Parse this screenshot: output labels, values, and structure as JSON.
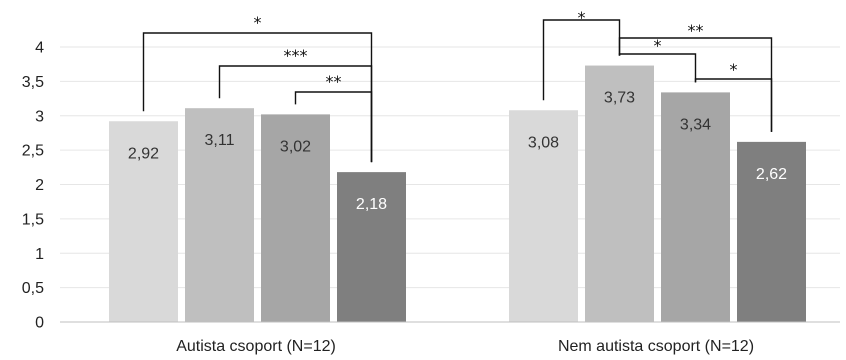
{
  "chart_data": {
    "type": "bar",
    "categories": [
      "Autista csoport (N=12)",
      "Nem autista csoport (N=12)"
    ],
    "series": [
      {
        "values": [
          2.92,
          3.08
        ],
        "labels": [
          "2,92",
          "3,08"
        ],
        "color": "#d9d9d9",
        "label_color": "#333333"
      },
      {
        "values": [
          3.11,
          3.73
        ],
        "labels": [
          "3,11",
          "3,73"
        ],
        "color": "#bfbfbf",
        "label_color": "#333333"
      },
      {
        "values": [
          3.02,
          3.34
        ],
        "labels": [
          "3,02",
          "3,34"
        ],
        "color": "#a6a6a6",
        "label_color": "#333333"
      },
      {
        "values": [
          2.18,
          2.62
        ],
        "labels": [
          "2,18",
          "2,62"
        ],
        "color": "#7f7f7f",
        "label_color": "#ffffff"
      }
    ],
    "ylim": [
      0,
      4
    ],
    "yticks": [
      "0",
      "0,5",
      "1",
      "1,5",
      "2",
      "2,5",
      "3",
      "3,5",
      "4"
    ],
    "grid": true,
    "significance": [
      {
        "group": 0,
        "from": 0,
        "to": 3,
        "text": "*"
      },
      {
        "group": 0,
        "from": 1,
        "to": 3,
        "text": "***"
      },
      {
        "group": 0,
        "from": 2,
        "to": 3,
        "text": "**"
      },
      {
        "group": 1,
        "from": 0,
        "to": 1,
        "text": "*"
      },
      {
        "group": 1,
        "from": 1,
        "to": 3,
        "text": "**"
      },
      {
        "group": 1,
        "from": 1,
        "to": 2,
        "text": "*"
      },
      {
        "group": 1,
        "from": 2,
        "to": 3,
        "text": "*"
      }
    ]
  }
}
